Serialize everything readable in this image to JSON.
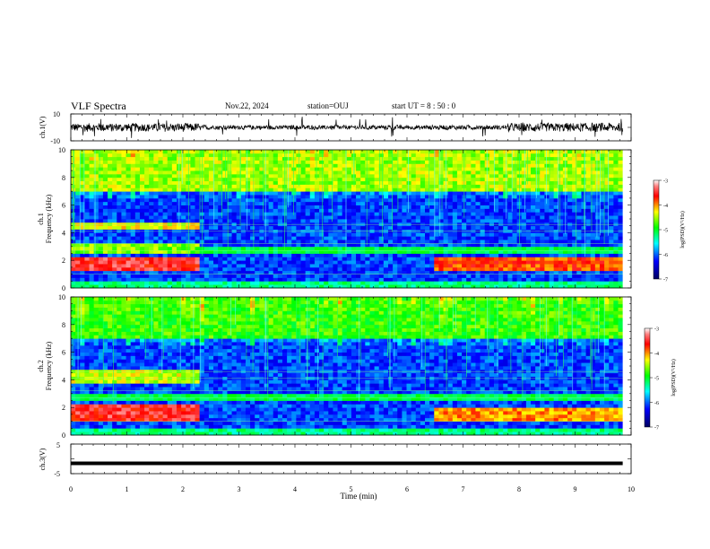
{
  "header": {
    "title": "VLF Spectra",
    "date": "Nov.22, 2024",
    "station": "station=OUJ",
    "start": "start  UT =  8 : 50 : 0"
  },
  "chart_data": [
    {
      "type": "line",
      "panel": "ch1-waveform",
      "ylabel": "ch.1(V)",
      "ylim": [
        -10,
        10
      ],
      "yticks": [
        "10",
        "-10"
      ],
      "x_range_min": [
        0,
        10
      ],
      "data_extent_min": [
        0,
        9.85
      ],
      "signal": "noisy waveform around 0 V, amplitude ~2-4 V with occasional spikes"
    },
    {
      "type": "heatmap",
      "panel": "ch1-spectrogram",
      "ylabel": "Frequency (kHz)",
      "channel_label": "ch.1",
      "ylim": [
        0,
        10
      ],
      "yticks": [
        "0",
        "2",
        "4",
        "6",
        "8",
        "10"
      ],
      "colorbar": {
        "label": "log(PSD)(V²/Hz)",
        "range": [
          -7,
          -3
        ],
        "ticks": [
          "-3",
          "-4",
          "-5",
          "-6",
          "-7"
        ]
      },
      "bands_khz": [
        {
          "t": [
            0,
            2.3
          ],
          "f": [
            1.2,
            2.2
          ],
          "level": -3.5
        },
        {
          "t": [
            0,
            2.3
          ],
          "f": [
            4.2,
            4.8
          ],
          "level": -4.3
        },
        {
          "t": [
            0,
            2.3
          ],
          "f": [
            2.6,
            3.3
          ],
          "level": -4.6
        },
        {
          "t": [
            6.5,
            9.85
          ],
          "f": [
            1.2,
            2.2
          ],
          "level": -3.8
        },
        {
          "t": [
            0,
            9.85
          ],
          "f": [
            7.0,
            10
          ],
          "level": -4.5
        }
      ]
    },
    {
      "type": "heatmap",
      "panel": "ch2-spectrogram",
      "ylabel": "Frequency (kHz)",
      "channel_label": "ch.2",
      "ylim": [
        0,
        10
      ],
      "yticks": [
        "0",
        "2",
        "4",
        "6",
        "8",
        "10"
      ],
      "colorbar": {
        "label": "log(PSD)(V²/Hz)",
        "range": [
          -7,
          -3
        ],
        "ticks": [
          "-3",
          "-4",
          "-5",
          "-6",
          "-7"
        ]
      },
      "bands_khz": [
        {
          "t": [
            0,
            2.3
          ],
          "f": [
            1.0,
            2.2
          ],
          "level": -3.5
        },
        {
          "t": [
            0,
            2.3
          ],
          "f": [
            3.8,
            4.8
          ],
          "level": -4.4
        },
        {
          "t": [
            6.5,
            9.85
          ],
          "f": [
            1.0,
            2.0
          ],
          "level": -4.0
        },
        {
          "t": [
            0,
            9.85
          ],
          "f": [
            7.0,
            10
          ],
          "level": -4.8
        }
      ]
    },
    {
      "type": "line",
      "panel": "ch3-waveform",
      "ylabel": "ch.3(V)",
      "ylim": [
        -5,
        5
      ],
      "yticks": [
        "5",
        "-5"
      ],
      "x": [
        0,
        9.85
      ],
      "y": [
        -1.5,
        -1.5
      ]
    }
  ],
  "xaxis": {
    "label": "Time (min)",
    "range": [
      0,
      10
    ],
    "ticks": [
      "0",
      "1",
      "2",
      "3",
      "4",
      "5",
      "6",
      "7",
      "8",
      "9",
      "10"
    ]
  },
  "colors": {
    "waveform": "#000000",
    "axis": "#000000",
    "low": "#000080",
    "high": "#ffffff"
  }
}
